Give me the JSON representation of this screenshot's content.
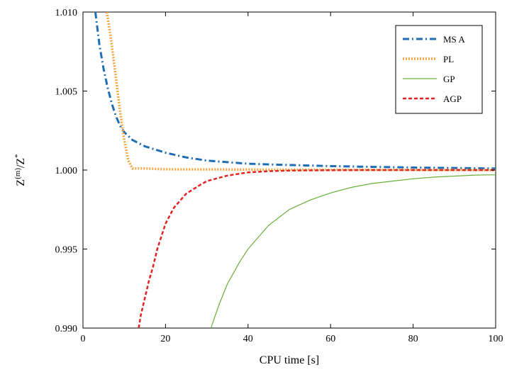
{
  "chart_data": {
    "type": "line",
    "title": "",
    "xlabel": "CPU time [s]",
    "ylabel": "Z(m)/Z*",
    "xlim": [
      0,
      100
    ],
    "ylim": [
      0.99,
      1.01
    ],
    "x_ticks": [
      "0",
      "20",
      "40",
      "60",
      "80",
      "100"
    ],
    "y_ticks": [
      "0.990",
      "0.995",
      "1.000",
      "1.005",
      "1.010"
    ],
    "grid": false,
    "legend_position": "top-right",
    "series": [
      {
        "name": "MS A",
        "color": "#1f6db5",
        "style": "dashdot",
        "x": [
          3,
          4,
          5,
          6,
          7,
          8,
          9,
          10,
          12,
          15,
          20,
          25,
          30,
          40,
          50,
          60,
          70,
          80,
          90,
          100
        ],
        "y": [
          1.01,
          1.0079,
          1.0064,
          1.0052,
          1.0042,
          1.0034,
          1.0028,
          1.0024,
          1.0019,
          1.0015,
          1.0011,
          1.0008,
          1.0006,
          1.0004,
          1.00032,
          1.00025,
          1.0002,
          1.00016,
          1.00013,
          1.0001
        ]
      },
      {
        "name": "PL",
        "color": "#f2a641",
        "style": "dotted",
        "x": [
          5.8,
          6.5,
          7,
          8,
          9,
          10,
          11,
          12,
          13,
          15,
          20,
          40,
          60,
          80,
          100
        ],
        "y": [
          1.01,
          1.0088,
          1.0079,
          1.0058,
          1.0037,
          1.0019,
          1.0006,
          1.0001,
          1.0001,
          1.0001,
          1.00005,
          1.00003,
          1.00002,
          1.00001,
          1.0
        ]
      },
      {
        "name": "GP",
        "color": "#6aae3a",
        "style": "solid",
        "x": [
          31,
          33,
          35,
          38,
          40,
          45,
          50,
          55,
          60,
          65,
          70,
          75,
          80,
          85,
          90,
          95,
          100
        ],
        "y": [
          0.99,
          0.9915,
          0.9928,
          0.9942,
          0.995,
          0.9965,
          0.9975,
          0.9981,
          0.99855,
          0.9989,
          0.99915,
          0.9993,
          0.99945,
          0.99955,
          0.99962,
          0.99968,
          0.9997
        ]
      },
      {
        "name": "AGP",
        "color": "#e32222",
        "style": "dashed",
        "x": [
          13.5,
          14,
          15,
          16,
          17,
          18,
          20,
          22,
          25,
          28,
          30,
          35,
          40,
          45,
          50,
          60,
          70,
          80,
          90,
          100
        ],
        "y": [
          0.99,
          0.9908,
          0.9919,
          0.993,
          0.9939,
          0.995,
          0.9966,
          0.9976,
          0.9985,
          0.999,
          0.9993,
          0.99965,
          0.99985,
          0.99993,
          0.99997,
          0.99999,
          1.0,
          1.0,
          1.0,
          1.0
        ]
      }
    ]
  }
}
